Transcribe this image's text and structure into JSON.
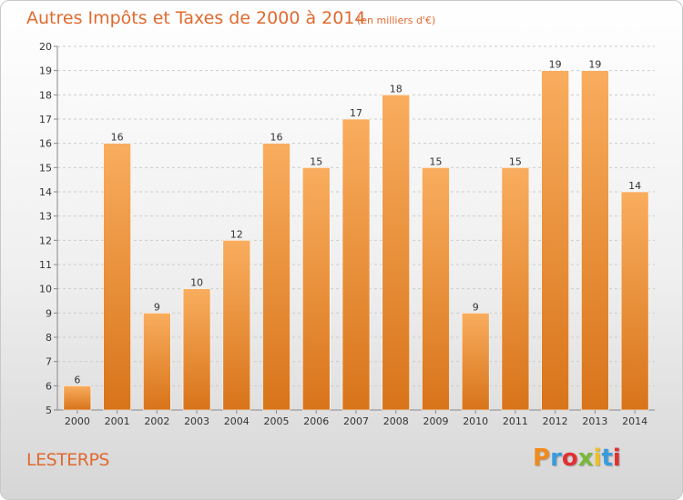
{
  "header": {
    "title": "Autres Impôts et Taxes de 2000 à 2014",
    "subtitle": "(en milliers d'€)"
  },
  "footer": {
    "place": "LESTERPS",
    "brand": "Proxiti",
    "brand_colors": [
      "#f08a1c",
      "#3a9bdc",
      "#e03030",
      "#7ab83a",
      "#f0c020",
      "#3a9bdc",
      "#e03030"
    ]
  },
  "colors": {
    "bar_light": "#f9ad5e",
    "bar_dark": "#d8741a",
    "accent": "#e06a30"
  },
  "chart_data": {
    "type": "bar",
    "title": "Autres Impôts et Taxes de 2000 à 2014",
    "subtitle": "(en milliers d'€)",
    "xlabel": "",
    "ylabel": "",
    "categories": [
      "2000",
      "2001",
      "2002",
      "2003",
      "2004",
      "2005",
      "2006",
      "2007",
      "2008",
      "2009",
      "2010",
      "2011",
      "2012",
      "2013",
      "2014"
    ],
    "values": [
      6,
      16,
      9,
      10,
      12,
      16,
      15,
      17,
      18,
      15,
      9,
      15,
      19,
      19,
      14
    ],
    "ylim": [
      5,
      20
    ],
    "yticks": [
      5,
      6,
      7,
      8,
      9,
      10,
      11,
      12,
      13,
      14,
      15,
      16,
      17,
      18,
      19,
      20
    ],
    "grid": true,
    "legend": "none"
  }
}
